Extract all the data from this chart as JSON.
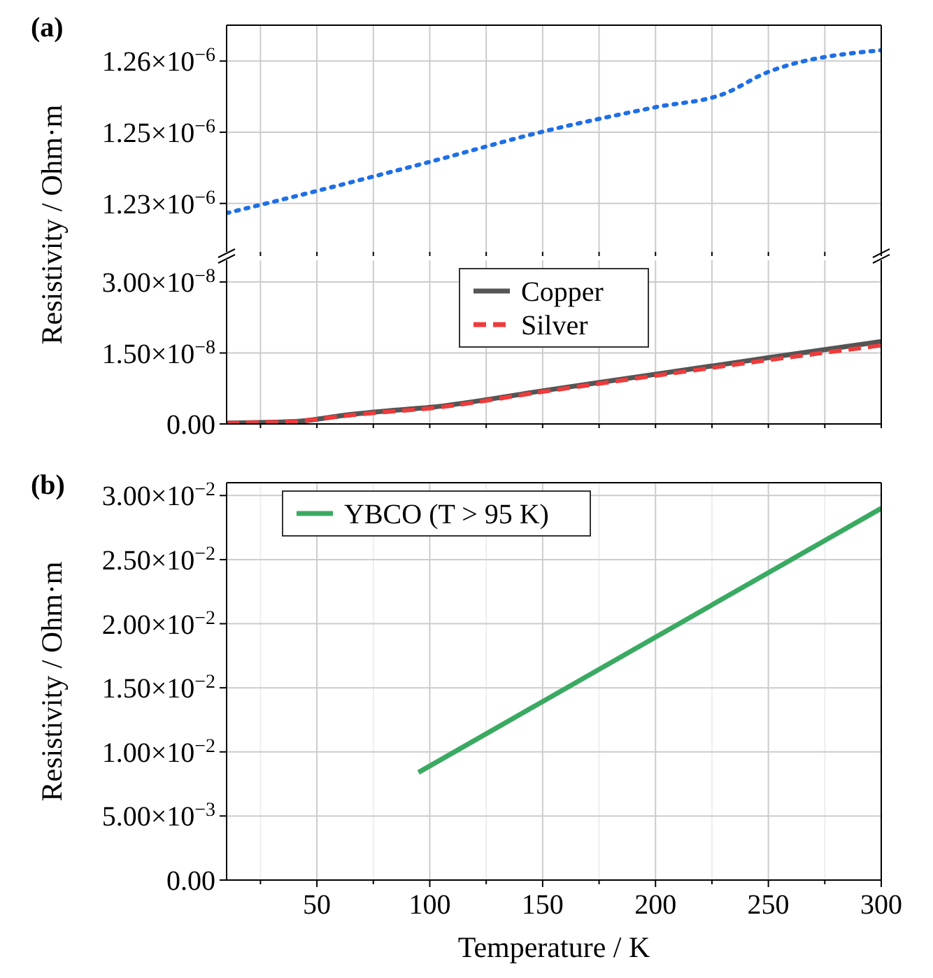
{
  "chart_data": [
    {
      "type": "line",
      "title": "(a)",
      "ylabel": "Resistivity / Ohm·m",
      "xlim": [
        10,
        300
      ],
      "xticks": [
        {
          "value": 25,
          "label": null
        },
        {
          "value": 50,
          "label": null
        },
        {
          "value": 75,
          "label": null
        },
        {
          "value": 100,
          "label": null
        },
        {
          "value": 125,
          "label": null
        },
        {
          "value": 150,
          "label": null
        },
        {
          "value": 175,
          "label": null
        },
        {
          "value": 200,
          "label": null
        },
        {
          "value": 225,
          "label": null
        },
        {
          "value": 250,
          "label": null
        },
        {
          "value": 275,
          "label": null
        },
        {
          "value": 300,
          "label": null
        }
      ],
      "ylim": [
        1.224e-06,
        1.2638e-06
      ],
      "yticks": [
        {
          "value": 1.2325e-06,
          "label": "1.23×10$^{−6}$"
        },
        {
          "value": 1.245e-06,
          "label": "1.25×10$^{−6}$"
        },
        {
          "value": 1.2575e-06,
          "label": "1.26×10$^{−6}$"
        }
      ],
      "tick_labels": "y",
      "grid": true,
      "marker": "none",
      "series": [
        {
          "color": "#1f6fe5",
          "line_style": "dotted",
          "x": [
            10,
            50,
            100,
            150,
            200,
            230,
            250,
            300
          ],
          "values": [
            1.2308e-06,
            1.2347e-06,
            1.2398e-06,
            1.2451e-06,
            1.2494e-06,
            1.2517e-06,
            1.2556e-06,
            1.2594e-06
          ]
        }
      ]
    },
    {
      "type": "line",
      "xlim": [
        10,
        300
      ],
      "xticks": [
        {
          "value": 25,
          "label": null
        },
        {
          "value": 50,
          "label": null
        },
        {
          "value": 75,
          "label": null
        },
        {
          "value": 100,
          "label": null
        },
        {
          "value": 125,
          "label": null
        },
        {
          "value": 150,
          "label": null
        },
        {
          "value": 175,
          "label": null
        },
        {
          "value": 200,
          "label": null
        },
        {
          "value": 225,
          "label": null
        },
        {
          "value": 250,
          "label": null
        },
        {
          "value": 275,
          "label": null
        },
        {
          "value": 300,
          "label": null
        }
      ],
      "ylim": [
        0,
        3.46e-08
      ],
      "yticks": [
        {
          "value": 0,
          "label": "0.00"
        },
        {
          "value": 1.5e-08,
          "label": "1.50×10$^{−8}$"
        },
        {
          "value": 3e-08,
          "label": "3.00×10$^{−8}$"
        }
      ],
      "tick_labels": "y",
      "grid": true,
      "marker": "none",
      "legend": "top",
      "series": [
        {
          "name": "Copper",
          "color": "#555555",
          "line_style": "solid",
          "x": [
            10,
            40,
            50,
            60,
            80,
            100,
            150,
            200,
            250,
            300
          ],
          "values": [
            2e-10,
            5e-10,
            1e-09,
            1.7e-09,
            2.7e-09,
            3.5e-09,
            7e-09,
            1.05e-08,
            1.4e-08,
            1.74e-08
          ]
        },
        {
          "name": "Silver",
          "color": "#ee3b3b",
          "line_style": "dashed",
          "x": [
            10,
            40,
            50,
            60,
            80,
            100,
            150,
            200,
            250,
            300
          ],
          "values": [
            2e-10,
            5e-10,
            1e-09,
            1.6e-09,
            2.5e-09,
            3.3e-09,
            6.8e-09,
            1.02e-08,
            1.35e-08,
            1.66e-08
          ]
        }
      ]
    },
    {
      "type": "line",
      "title": "(b)",
      "xlabel": "Temperature / K",
      "ylabel": "Resistivity / Ohm·m",
      "xlim": [
        10,
        300
      ],
      "xticks": [
        {
          "value": 25,
          "label": null
        },
        50,
        {
          "value": 75,
          "label": null
        },
        100,
        {
          "value": 125,
          "label": null
        },
        150,
        {
          "value": 175,
          "label": null
        },
        200,
        {
          "value": 225,
          "label": null
        },
        250,
        {
          "value": 275,
          "label": null
        },
        300
      ],
      "ylim": [
        0,
        0.031
      ],
      "yticks": [
        {
          "value": 0,
          "label": "0.00"
        },
        {
          "value": 0.005,
          "label": "5.00×10$^{−3}$"
        },
        {
          "value": 0.01,
          "label": "1.00×10$^{−2}$"
        },
        {
          "value": 0.015,
          "label": "1.50×10$^{−2}$"
        },
        {
          "value": 0.02,
          "label": "2.00×10$^{−2}$"
        },
        {
          "value": 0.025,
          "label": "2.50×10$^{−2}$"
        },
        {
          "value": 0.03,
          "label": "3.00×10$^{−2}$"
        }
      ],
      "grid": true,
      "marker": "none",
      "legend": "top left",
      "series": [
        {
          "name": "YBCO (T > 95 K)",
          "color": "#3aaa62",
          "line_style": "solid",
          "x": [
            95,
            300
          ],
          "values": [
            0.0084,
            0.029
          ]
        }
      ]
    }
  ]
}
